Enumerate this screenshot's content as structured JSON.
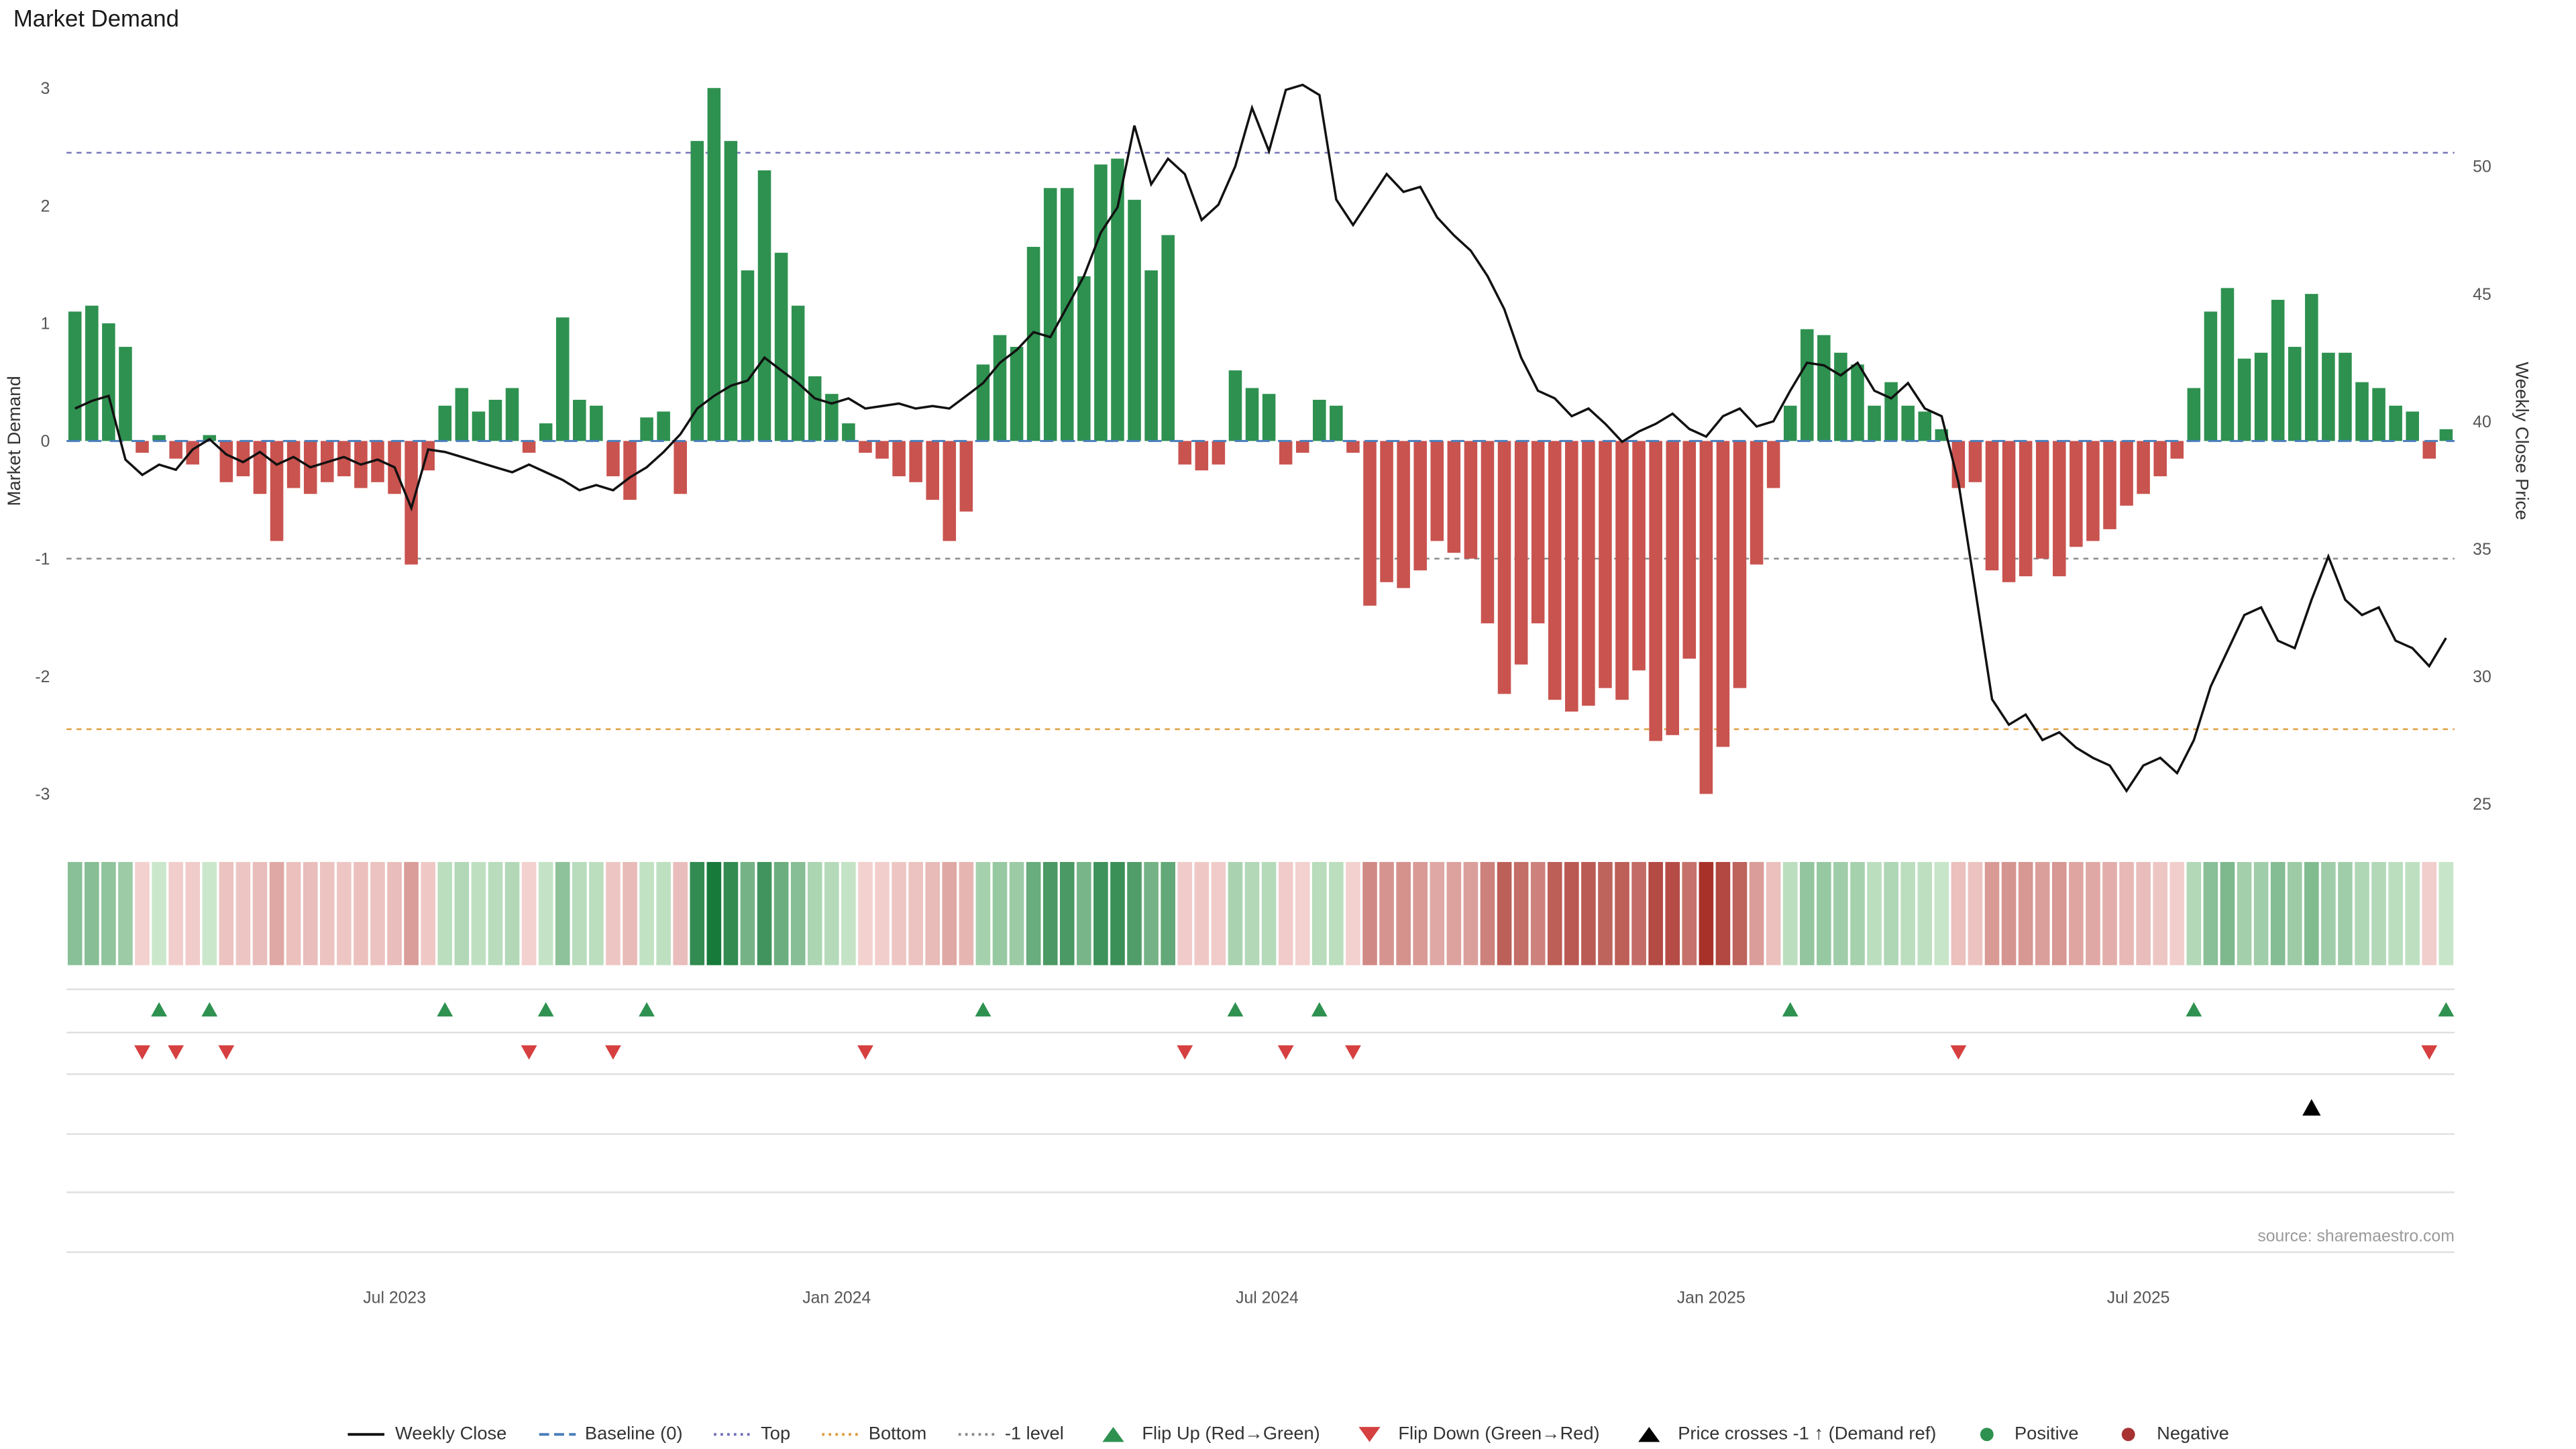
{
  "title": "Market Demand",
  "source": "source: sharemaestro.com",
  "axes": {
    "left_label": "Market Demand",
    "right_label": "Weekly Close Price",
    "left_ticks": [
      3,
      2,
      1,
      0,
      -1,
      -2,
      -3
    ],
    "right_ticks": [
      50,
      45,
      40,
      35,
      30,
      25
    ],
    "x_ticks": [
      {
        "label": "Jul 2023",
        "i": 19.0
      },
      {
        "label": "Jan 2024",
        "i": 45.3
      },
      {
        "label": "Jul 2024",
        "i": 70.9
      },
      {
        "label": "Jan 2025",
        "i": 97.3
      },
      {
        "label": "Jul 2025",
        "i": 122.7
      }
    ]
  },
  "colors": {
    "positive": "#2e9150",
    "negative": "#c9534f",
    "price_line": "#111111",
    "baseline": "#4a7ebb",
    "top_line": "#7070b8",
    "bottom_line": "#e09c3c",
    "minus1_line": "#8a8a8a",
    "flip_up": "#2e9150",
    "flip_down": "#d64040",
    "price_cross": "#000000",
    "grid": "#e0e0e0",
    "tick_text": "#555555"
  },
  "chart_data": {
    "type": "combo",
    "title": "Market Demand",
    "left_axis": {
      "label": "Market Demand",
      "range": [
        -3,
        3
      ]
    },
    "right_axis": {
      "label": "Weekly Close Price",
      "range": [
        25,
        50
      ]
    },
    "ref_lines": {
      "baseline": 0,
      "top": 2.45,
      "bottom": -2.45,
      "minus1": -1
    },
    "demand": [
      1.1,
      1.15,
      1.0,
      0.8,
      -0.1,
      0.05,
      -0.15,
      -0.2,
      0.05,
      -0.35,
      -0.3,
      -0.45,
      -0.85,
      -0.4,
      -0.45,
      -0.35,
      -0.3,
      -0.4,
      -0.35,
      -0.45,
      -1.05,
      -0.25,
      0.3,
      0.45,
      0.25,
      0.35,
      0.45,
      -0.1,
      0.15,
      1.05,
      0.35,
      0.3,
      -0.3,
      -0.5,
      0.2,
      0.25,
      -0.45,
      2.55,
      3.0,
      2.55,
      1.45,
      2.3,
      1.6,
      1.15,
      0.55,
      0.4,
      0.15,
      -0.1,
      -0.15,
      -0.3,
      -0.35,
      -0.5,
      -0.85,
      -0.6,
      0.65,
      0.9,
      0.8,
      1.65,
      2.15,
      2.15,
      1.4,
      2.35,
      2.4,
      2.05,
      1.45,
      1.75,
      -0.2,
      -0.25,
      -0.2,
      0.6,
      0.45,
      0.4,
      -0.2,
      -0.1,
      0.35,
      0.3,
      -0.1,
      -1.4,
      -1.2,
      -1.25,
      -1.1,
      -0.85,
      -0.95,
      -1.0,
      -1.55,
      -2.15,
      -1.9,
      -1.55,
      -2.2,
      -2.3,
      -2.25,
      -2.1,
      -2.2,
      -1.95,
      -2.55,
      -2.5,
      -1.85,
      -3.0,
      -2.6,
      -2.1,
      -1.05,
      -0.4,
      0.3,
      0.95,
      0.9,
      0.75,
      0.65,
      0.3,
      0.5,
      0.3,
      0.25,
      0.1,
      -0.4,
      -0.35,
      -1.1,
      -1.2,
      -1.15,
      -1.0,
      -1.15,
      -0.9,
      -0.85,
      -0.75,
      -0.55,
      -0.45,
      -0.3,
      -0.15,
      0.45,
      1.1,
      1.3,
      0.7,
      0.75,
      1.2,
      0.8,
      1.25,
      0.75,
      0.75,
      0.5,
      0.45,
      0.3,
      0.25,
      -0.15,
      0.1
    ],
    "price": [
      40.5,
      40.8,
      41.0,
      38.5,
      37.9,
      38.3,
      38.1,
      38.9,
      39.3,
      38.7,
      38.4,
      38.8,
      38.3,
      38.6,
      38.2,
      38.4,
      38.6,
      38.3,
      38.5,
      38.2,
      36.6,
      38.9,
      38.8,
      38.6,
      38.4,
      38.2,
      38.0,
      38.3,
      38.0,
      37.7,
      37.3,
      37.5,
      37.3,
      37.8,
      38.2,
      38.8,
      39.5,
      40.5,
      41.0,
      41.4,
      41.6,
      42.5,
      42.0,
      41.5,
      40.9,
      40.7,
      40.9,
      40.5,
      40.6,
      40.7,
      40.5,
      40.6,
      40.5,
      41.0,
      41.5,
      42.3,
      42.8,
      43.5,
      43.3,
      44.5,
      45.7,
      47.4,
      48.4,
      51.6,
      49.3,
      50.3,
      49.7,
      47.9,
      48.5,
      50.0,
      52.3,
      50.6,
      53.0,
      53.2,
      52.8,
      48.7,
      47.7,
      48.7,
      49.7,
      49.0,
      49.2,
      48.0,
      47.3,
      46.7,
      45.7,
      44.4,
      42.5,
      41.2,
      40.9,
      40.2,
      40.5,
      39.9,
      39.2,
      39.6,
      39.9,
      40.3,
      39.7,
      39.4,
      40.2,
      40.5,
      39.8,
      40.0,
      41.2,
      42.3,
      42.2,
      41.8,
      42.3,
      41.2,
      40.9,
      41.5,
      40.5,
      40.2,
      37.6,
      33.4,
      29.1,
      28.1,
      28.5,
      27.5,
      27.8,
      27.2,
      26.8,
      26.5,
      25.5,
      26.5,
      26.8,
      26.2,
      27.5,
      29.6,
      31.0,
      32.4,
      32.7,
      31.4,
      31.1,
      33.0,
      34.7,
      33.0,
      32.4,
      32.7,
      31.4,
      31.1,
      30.4,
      31.5
    ],
    "markers": {
      "flip_up": [
        5,
        8,
        22,
        28,
        34,
        54,
        69,
        74,
        102,
        126,
        141
      ],
      "flip_down": [
        4,
        6,
        9,
        27,
        32,
        47,
        66,
        72,
        76,
        112,
        140
      ],
      "price_cross": [
        133
      ]
    }
  },
  "legend": [
    {
      "label": "Weekly Close",
      "type": "line-solid",
      "color": "#111111"
    },
    {
      "label": "Baseline (0)",
      "type": "line-dashed",
      "color": "#4a7ebb"
    },
    {
      "label": "Top",
      "type": "line-dotted",
      "color": "#7070b8"
    },
    {
      "label": "Bottom",
      "type": "line-dotted",
      "color": "#e09c3c"
    },
    {
      "label": "-1 level",
      "type": "line-dotted",
      "color": "#8a8a8a"
    },
    {
      "label": "Flip Up (Red→Green)",
      "type": "triangle-up",
      "color": "#2e9150"
    },
    {
      "label": "Flip Down (Green→Red)",
      "type": "triangle-down",
      "color": "#d64040"
    },
    {
      "label": "Price crosses -1 ↑ (Demand ref)",
      "type": "triangle-up",
      "color": "#000000"
    },
    {
      "label": "Positive",
      "type": "dot",
      "color": "#2e9150"
    },
    {
      "label": "Negative",
      "type": "dot",
      "color": "#a83232"
    }
  ]
}
